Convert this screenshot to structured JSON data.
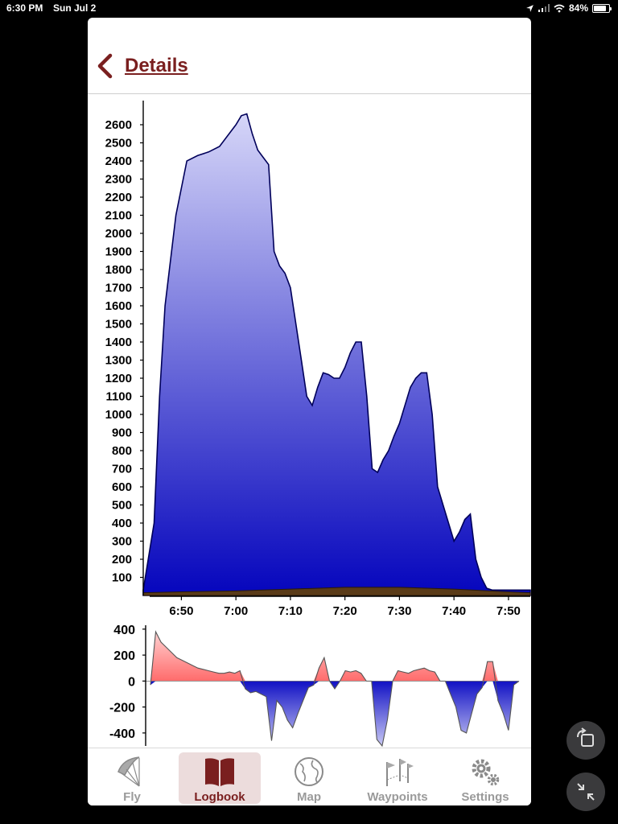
{
  "status": {
    "time": "6:30 PM",
    "date": "Sun Jul 2",
    "battery": "84%",
    "battery_level": 0.84
  },
  "header": {
    "title": "Details",
    "back_icon": "chevron-left-icon"
  },
  "tabs": [
    {
      "label": "Fly",
      "icon": "paraglider-icon",
      "active": false
    },
    {
      "label": "Logbook",
      "icon": "book-icon",
      "active": true
    },
    {
      "label": "Map",
      "icon": "globe-icon",
      "active": false
    },
    {
      "label": "Waypoints",
      "icon": "flags-icon",
      "active": false
    },
    {
      "label": "Settings",
      "icon": "gear-icon",
      "active": false
    }
  ],
  "chart_data": [
    {
      "type": "area",
      "title": "",
      "xlabel": "",
      "ylabel": "",
      "x_ticks": [
        "6:50",
        "7:00",
        "7:10",
        "7:20",
        "7:30",
        "7:40",
        "7:50"
      ],
      "y_ticks": [
        100,
        200,
        300,
        400,
        500,
        600,
        700,
        800,
        900,
        1000,
        1100,
        1200,
        1300,
        1400,
        1500,
        1600,
        1700,
        1800,
        1900,
        2000,
        2100,
        2200,
        2300,
        2400,
        2500,
        2600
      ],
      "xlim": [
        "6:43",
        "7:54"
      ],
      "ylim": [
        0,
        2680
      ],
      "grid": false,
      "colors": {
        "altitude_top": "#d6d6f8",
        "altitude_bottom": "#0505bd",
        "altitude_line": "#00005a",
        "ground": "#5a3b18"
      },
      "series": [
        {
          "x": [
            "6:43",
            "6:45",
            "6:46",
            "6:47",
            "6:49",
            "6:51",
            "6:53",
            "6:55",
            "6:57",
            "6:58",
            "6:59",
            "7:00",
            "7:01",
            "7:02",
            "7:03",
            "7:04",
            "7:05",
            "7:06",
            "7:07",
            "7:08",
            "7:09",
            "7:10",
            "7:11",
            "7:12",
            "7:13",
            "7:14",
            "7:15",
            "7:16",
            "7:17",
            "7:18",
            "7:19",
            "7:20",
            "7:21",
            "7:22",
            "7:23",
            "7:24",
            "7:25",
            "7:26",
            "7:27",
            "7:28",
            "7:29",
            "7:30",
            "7:31",
            "7:32",
            "7:33",
            "7:34",
            "7:35",
            "7:36",
            "7:37",
            "7:38",
            "7:39",
            "7:40",
            "7:41",
            "7:42",
            "7:43",
            "7:44",
            "7:45",
            "7:46",
            "7:47",
            "7:48",
            "7:49",
            "7:50",
            "7:51",
            "7:52",
            "7:53",
            "7:54"
          ],
          "values": [
            30,
            400,
            1100,
            1600,
            2100,
            2400,
            2430,
            2450,
            2480,
            2520,
            2560,
            2600,
            2650,
            2660,
            2550,
            2460,
            2420,
            2380,
            1900,
            1820,
            1780,
            1700,
            1500,
            1300,
            1100,
            1050,
            1150,
            1230,
            1220,
            1200,
            1200,
            1260,
            1340,
            1400,
            1400,
            1100,
            700,
            680,
            750,
            800,
            880,
            950,
            1050,
            1150,
            1200,
            1230,
            1230,
            1000,
            600,
            500,
            400,
            300,
            350,
            420,
            450,
            200,
            100,
            40,
            30,
            30,
            30,
            30,
            30,
            30,
            30,
            30
          ]
        }
      ],
      "ground": {
        "x": [
          "6:43",
          "6:50",
          "7:00",
          "7:10",
          "7:20",
          "7:30",
          "7:40",
          "7:50",
          "7:54"
        ],
        "values": [
          15,
          20,
          25,
          35,
          45,
          45,
          35,
          20,
          15
        ]
      }
    },
    {
      "type": "area",
      "title": "",
      "xlabel": "",
      "ylabel": "",
      "y_ticks": [
        400,
        200,
        0,
        -200,
        -400
      ],
      "ylim": [
        -500,
        430
      ],
      "grid": false,
      "colors": {
        "positive": "#ff6b6b",
        "negative": "#1111c4",
        "line": "#555555"
      },
      "series": [
        {
          "x": [
            0,
            1,
            2,
            3,
            4,
            5,
            6,
            7,
            8,
            9,
            10,
            11,
            12,
            13,
            14,
            15,
            16,
            17,
            18,
            19,
            20,
            21,
            22,
            23,
            24,
            25,
            26,
            27,
            28,
            29,
            30,
            31,
            32,
            33,
            34,
            35,
            36,
            37,
            38,
            39,
            40,
            41,
            42,
            43,
            44,
            45,
            46,
            47,
            48,
            49,
            50,
            51,
            52,
            53,
            54,
            55,
            56,
            57,
            58,
            59,
            60,
            61,
            62,
            63,
            64,
            65,
            66,
            67,
            68,
            69,
            70
          ],
          "values": [
            -30,
            380,
            300,
            260,
            220,
            180,
            160,
            140,
            120,
            100,
            90,
            80,
            70,
            60,
            60,
            70,
            60,
            80,
            -60,
            -90,
            -80,
            -100,
            -120,
            -460,
            -150,
            -200,
            -300,
            -360,
            -250,
            -150,
            -50,
            -30,
            100,
            180,
            0,
            -60,
            0,
            80,
            70,
            80,
            60,
            0,
            0,
            -450,
            -500,
            -300,
            0,
            80,
            70,
            60,
            80,
            90,
            100,
            80,
            70,
            0,
            0,
            -100,
            -200,
            -380,
            -400,
            -250,
            -100,
            -50,
            150,
            150,
            -150,
            -250,
            -380,
            -30,
            0
          ]
        }
      ]
    }
  ]
}
